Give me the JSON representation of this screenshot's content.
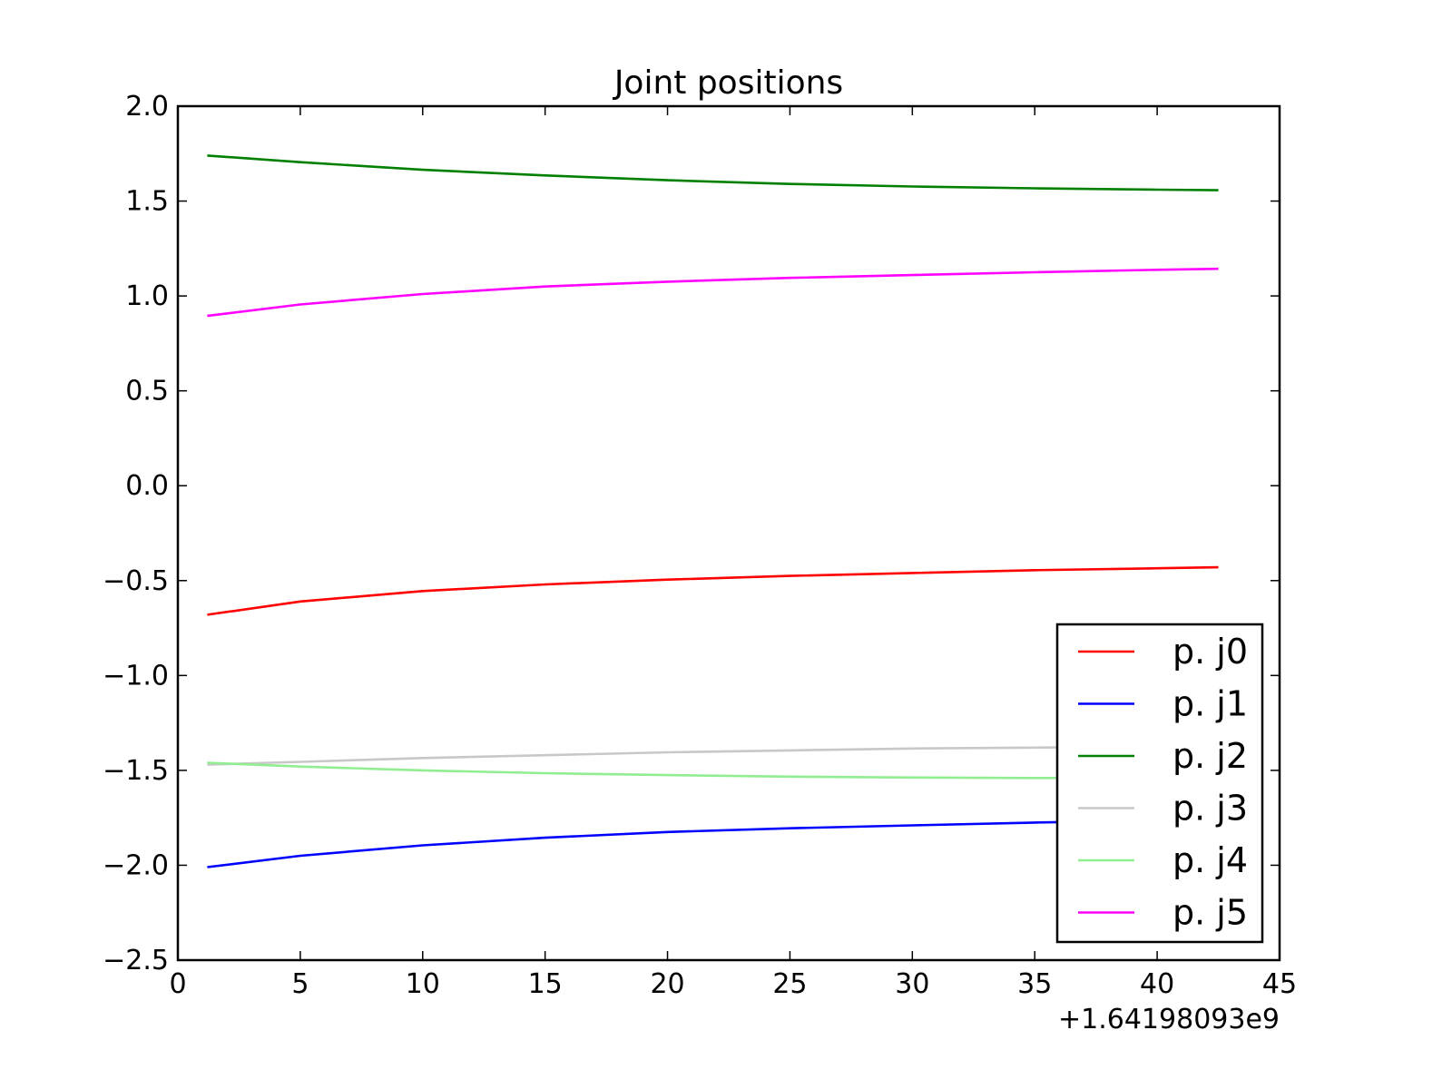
{
  "chart_data": {
    "type": "line",
    "title": "Joint positions",
    "xlabel": "",
    "ylabel": "",
    "x_offset_label": "+1.64198093e9",
    "xlim": [
      0,
      45
    ],
    "ylim": [
      -2.5,
      2.0
    ],
    "x_ticks": [
      0,
      5,
      10,
      15,
      20,
      25,
      30,
      35,
      40,
      45
    ],
    "x_tick_labels": [
      "0",
      "5",
      "10",
      "15",
      "20",
      "25",
      "30",
      "35",
      "40",
      "45"
    ],
    "y_ticks": [
      -2.5,
      -2.0,
      -1.5,
      -1.0,
      -0.5,
      0.0,
      0.5,
      1.0,
      1.5,
      2.0
    ],
    "y_tick_labels": [
      "−2.5",
      "−2.0",
      "−1.5",
      "−1.0",
      "−0.5",
      "0.0",
      "0.5",
      "1.0",
      "1.5",
      "2.0"
    ],
    "grid": false,
    "legend_position": "bottom-right",
    "x": [
      1.2,
      5,
      10,
      15,
      20,
      25,
      30,
      35,
      40,
      42.5
    ],
    "series": [
      {
        "name": "p. j0",
        "color": "#ff0000",
        "values": [
          -0.68,
          -0.61,
          -0.555,
          -0.52,
          -0.495,
          -0.475,
          -0.46,
          -0.445,
          -0.435,
          -0.43
        ]
      },
      {
        "name": "p. j1",
        "color": "#0000ff",
        "values": [
          -2.01,
          -1.95,
          -1.895,
          -1.855,
          -1.825,
          -1.805,
          -1.79,
          -1.775,
          -1.765,
          -1.76
        ]
      },
      {
        "name": "p. j2",
        "color": "#008000",
        "values": [
          1.74,
          1.705,
          1.665,
          1.635,
          1.61,
          1.59,
          1.577,
          1.567,
          1.56,
          1.557
        ]
      },
      {
        "name": "p. j3",
        "color": "#c8c8c8",
        "values": [
          -1.47,
          -1.455,
          -1.435,
          -1.42,
          -1.405,
          -1.395,
          -1.385,
          -1.38,
          -1.372,
          -1.37
        ]
      },
      {
        "name": "p. j4",
        "color": "#90ee90",
        "values": [
          -1.46,
          -1.48,
          -1.5,
          -1.515,
          -1.525,
          -1.533,
          -1.538,
          -1.54,
          -1.54,
          -1.54
        ]
      },
      {
        "name": "p. j5",
        "color": "#ff00ff",
        "values": [
          0.895,
          0.955,
          1.01,
          1.05,
          1.075,
          1.095,
          1.11,
          1.125,
          1.138,
          1.143
        ]
      }
    ]
  }
}
